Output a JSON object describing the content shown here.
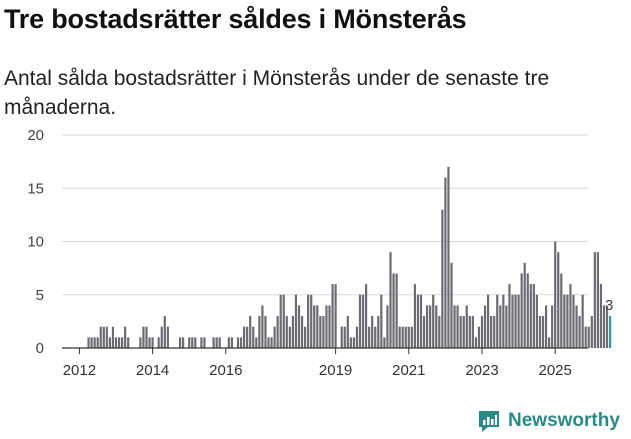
{
  "title": "Tre bostadsrätter såldes i Mönsterås",
  "subtitle": "Antal sålda bostadsrätter i Mönsterås under de senaste tre månaderna.",
  "brand": "Newsworthy",
  "colors": {
    "bar": "#6b6b72",
    "highlight": "#2b9c92",
    "grid": "#d9d9d9",
    "brand": "#2b8a86"
  },
  "chart_data": {
    "type": "bar",
    "title": "Tre bostadsrätter såldes i Mönsterås",
    "ylabel": "",
    "xlabel": "",
    "ylim": [
      0,
      20
    ],
    "yticks": [
      "0",
      "5",
      "10",
      "15",
      "20"
    ],
    "start": "2011-07",
    "xtick_labels": [
      "2012",
      "2014",
      "2016",
      "2019",
      "2021",
      "2023",
      "2025"
    ],
    "xtick_months": [
      6,
      30,
      54,
      90,
      114,
      138,
      162
    ],
    "values": [
      0,
      0,
      0,
      0,
      0,
      0,
      0,
      0,
      0,
      1,
      1,
      1,
      1,
      2,
      2,
      2,
      1,
      2,
      1,
      1,
      1,
      2,
      1,
      0,
      0,
      0,
      1,
      2,
      2,
      1,
      1,
      0,
      1,
      2,
      3,
      2,
      0,
      0,
      0,
      1,
      1,
      0,
      1,
      1,
      1,
      0,
      1,
      1,
      0,
      0,
      1,
      1,
      1,
      0,
      0,
      1,
      1,
      0,
      1,
      1,
      2,
      2,
      3,
      2,
      1,
      3,
      4,
      3,
      1,
      1,
      2,
      3,
      5,
      5,
      3,
      2,
      3,
      5,
      4,
      3,
      2,
      5,
      5,
      4,
      4,
      3,
      3,
      4,
      4,
      6,
      6,
      0,
      2,
      2,
      3,
      1,
      1,
      2,
      5,
      5,
      6,
      2,
      3,
      2,
      3,
      5,
      1,
      4,
      9,
      7,
      7,
      2,
      2,
      2,
      2,
      2,
      6,
      5,
      5,
      3,
      4,
      4,
      5,
      4,
      3,
      13,
      16,
      17,
      8,
      4,
      4,
      3,
      3,
      4,
      3,
      3,
      1,
      2,
      3,
      4,
      5,
      3,
      3,
      5,
      4,
      5,
      4,
      6,
      5,
      5,
      5,
      7,
      8,
      7,
      6,
      6,
      5,
      3,
      3,
      4,
      1,
      4,
      10,
      9,
      7,
      5,
      5,
      6,
      5,
      4,
      3,
      5,
      2,
      2,
      3,
      9,
      9,
      6,
      4,
      4,
      3
    ],
    "highlight_last": true,
    "last_label": "3"
  }
}
